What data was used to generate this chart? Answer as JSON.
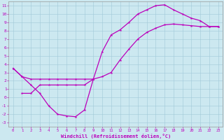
{
  "xlabel": "Windchill (Refroidissement éolien,°C)",
  "bg_color": "#cce8f0",
  "line_color": "#bb00bb",
  "xlim": [
    -0.5,
    23.5
  ],
  "ylim": [
    -3.5,
    11.5
  ],
  "xticks": [
    0,
    1,
    2,
    3,
    4,
    5,
    6,
    7,
    8,
    9,
    10,
    11,
    12,
    13,
    14,
    15,
    16,
    17,
    18,
    19,
    20,
    21,
    22,
    23
  ],
  "yticks": [
    -3,
    -2,
    -1,
    0,
    1,
    2,
    3,
    4,
    5,
    6,
    7,
    8,
    9,
    10,
    11
  ],
  "curve1_x": [
    0,
    1,
    2,
    3,
    4,
    5,
    6,
    7,
    8,
    9,
    10,
    11,
    12,
    13,
    14,
    15,
    16,
    17,
    18,
    19,
    20,
    21,
    22,
    23
  ],
  "curve1_y": [
    3.5,
    2.5,
    1.5,
    0.5,
    -1.0,
    -2.0,
    -2.2,
    -2.3,
    -1.5,
    2.2,
    5.5,
    7.5,
    8.1,
    9.0,
    10.0,
    10.5,
    11.0,
    11.1,
    10.5,
    10.0,
    9.5,
    9.2,
    8.5,
    8.5
  ],
  "curve2_x": [
    0,
    1,
    2,
    3,
    4,
    5,
    6,
    7,
    8,
    9,
    10,
    11,
    12,
    13,
    14,
    15,
    16,
    17,
    18,
    19,
    20,
    21,
    22,
    23
  ],
  "curve2_y": [
    3.5,
    2.5,
    2.2,
    2.2,
    2.2,
    2.2,
    2.2,
    2.2,
    2.2,
    2.2,
    2.5,
    3.0,
    4.5,
    5.8,
    7.0,
    7.8,
    8.3,
    8.7,
    8.8,
    8.7,
    8.6,
    8.5,
    8.5,
    8.5
  ],
  "curve3_x": [
    1,
    2,
    3,
    4,
    5,
    6,
    7,
    8,
    9
  ],
  "curve3_y": [
    0.5,
    0.5,
    1.5,
    1.5,
    1.5,
    1.5,
    1.5,
    1.5,
    2.2
  ]
}
